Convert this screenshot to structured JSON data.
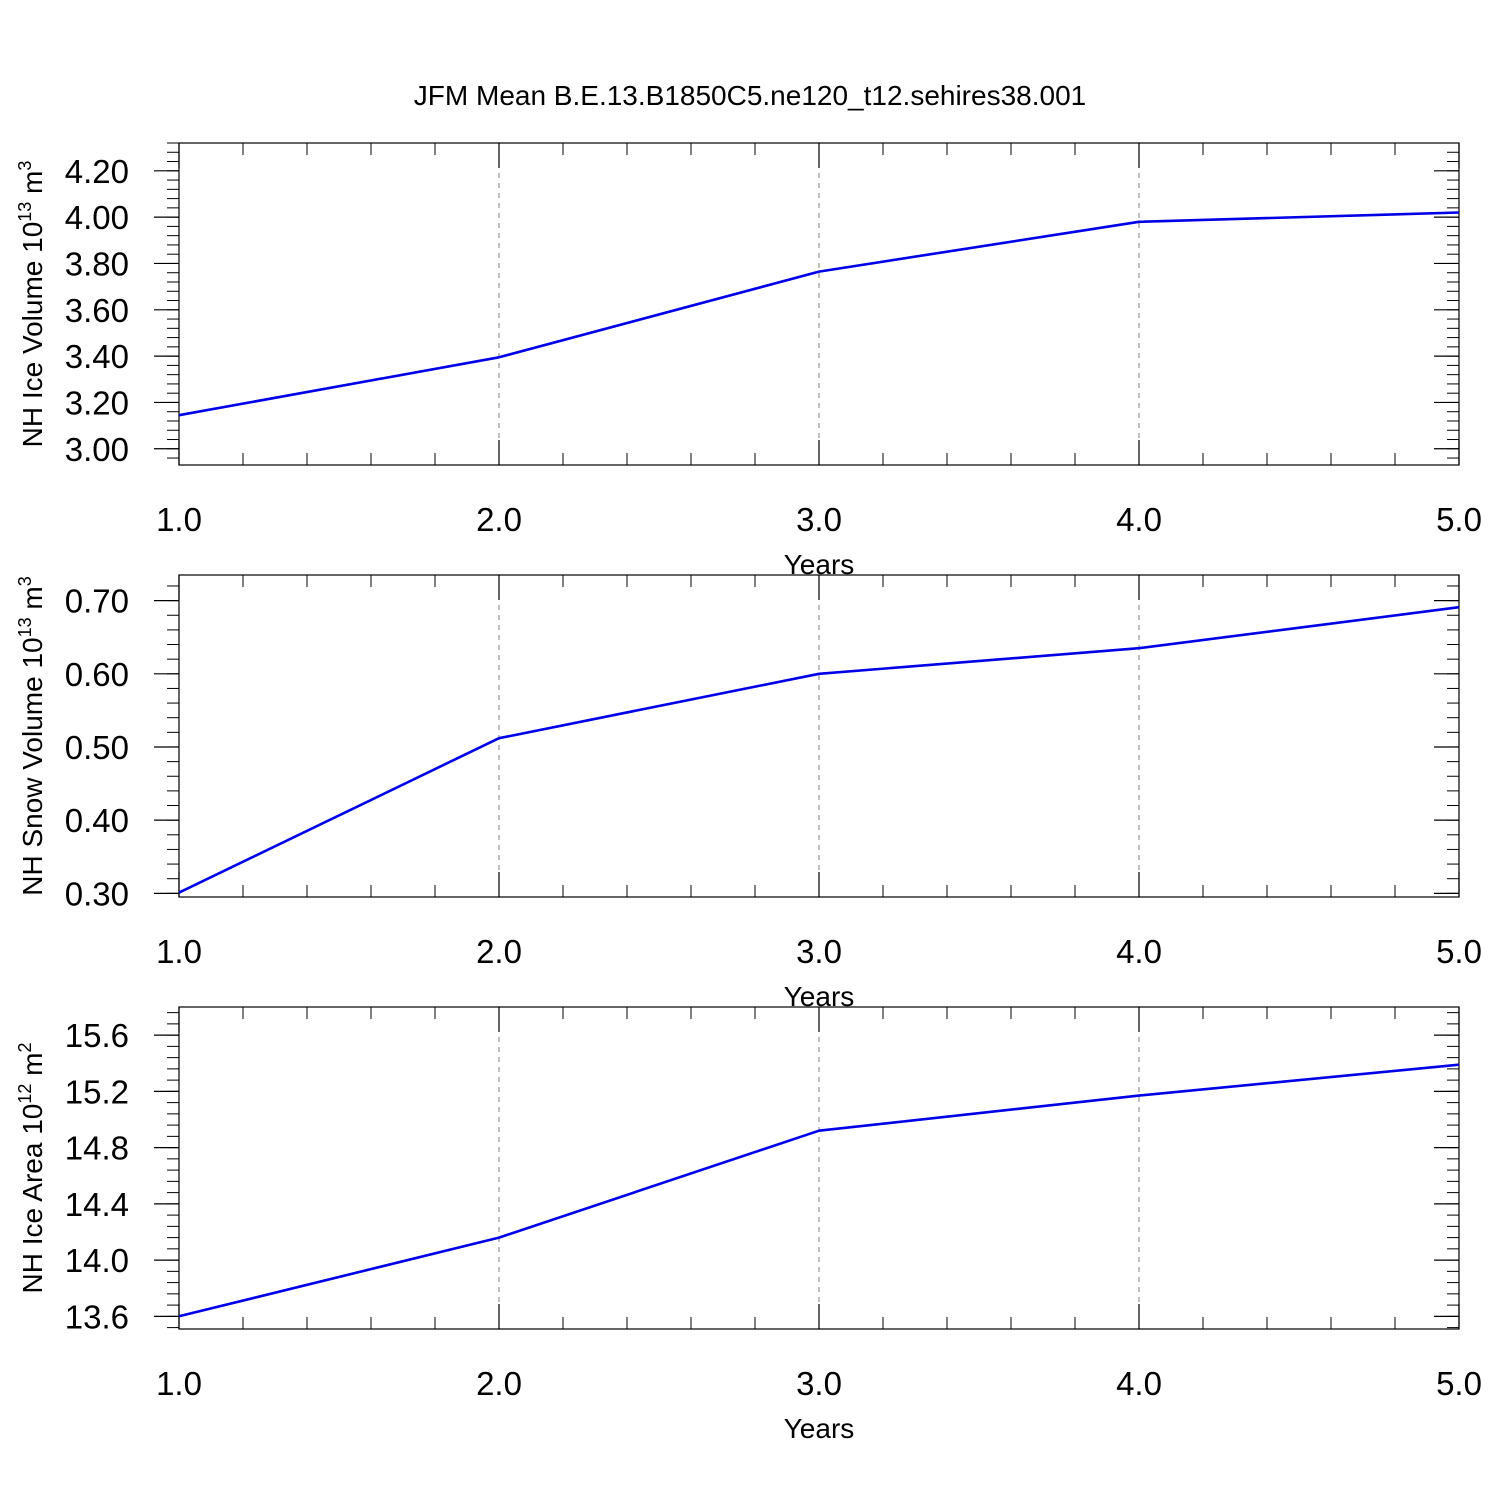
{
  "title": "JFM Mean B.E.13.B1850C5.ne120_t12.sehires38.001",
  "colors": {
    "line": "#0000e6",
    "axis": "#000000",
    "grid": "#7f7f7f"
  },
  "chart_data": [
    {
      "type": "line",
      "ylabel": "NH Ice Volume 10",
      "ylabel_exp": "13",
      "ylabel_unit": " m",
      "ylabel_unit_exp": "3",
      "xlabel": "Years",
      "xlim": [
        1.0,
        5.0
      ],
      "ylim": [
        2.93,
        4.32
      ],
      "xticks": [
        1.0,
        2.0,
        3.0,
        4.0,
        5.0
      ],
      "xtick_labels": [
        "1.0",
        "2.0",
        "3.0",
        "4.0",
        "5.0"
      ],
      "yticks": [
        3.0,
        3.2,
        3.4,
        3.6,
        3.8,
        4.0,
        4.2
      ],
      "ytick_labels": [
        "3.00",
        "3.20",
        "3.40",
        "3.60",
        "3.80",
        "4.00",
        "4.20"
      ],
      "yminor_step": 0.04,
      "x": [
        1.0,
        2.0,
        3.0,
        4.0,
        5.0
      ],
      "series": [
        {
          "name": "NH Ice Volume",
          "values": [
            3.145,
            3.395,
            3.765,
            3.98,
            4.02
          ]
        }
      ],
      "grid": "x-dashed"
    },
    {
      "type": "line",
      "ylabel": "NH Snow Volume 10",
      "ylabel_exp": "13",
      "ylabel_unit": " m",
      "ylabel_unit_exp": "3",
      "xlabel": "Years",
      "xlim": [
        1.0,
        5.0
      ],
      "ylim": [
        0.295,
        0.735
      ],
      "xticks": [
        1.0,
        2.0,
        3.0,
        4.0,
        5.0
      ],
      "xtick_labels": [
        "1.0",
        "2.0",
        "3.0",
        "4.0",
        "5.0"
      ],
      "yticks": [
        0.3,
        0.4,
        0.5,
        0.6,
        0.7
      ],
      "ytick_labels": [
        "0.30",
        "0.40",
        "0.50",
        "0.60",
        "0.70"
      ],
      "yminor_step": 0.02,
      "x": [
        1.0,
        2.0,
        3.0,
        4.0,
        5.0
      ],
      "series": [
        {
          "name": "NH Snow Volume",
          "values": [
            0.301,
            0.512,
            0.6,
            0.635,
            0.691
          ]
        }
      ],
      "grid": "x-dashed"
    },
    {
      "type": "line",
      "ylabel": "NH Ice Area 10",
      "ylabel_exp": "12",
      "ylabel_unit": " m",
      "ylabel_unit_exp": "2",
      "xlabel": "Years",
      "xlim": [
        1.0,
        5.0
      ],
      "ylim": [
        13.51,
        15.8
      ],
      "xticks": [
        1.0,
        2.0,
        3.0,
        4.0,
        5.0
      ],
      "xtick_labels": [
        "1.0",
        "2.0",
        "3.0",
        "4.0",
        "5.0"
      ],
      "yticks": [
        13.6,
        14.0,
        14.4,
        14.8,
        15.2,
        15.6
      ],
      "ytick_labels": [
        "13.6",
        "14.0",
        "14.4",
        "14.8",
        "15.2",
        "15.6"
      ],
      "yminor_step": 0.08,
      "x": [
        1.0,
        2.0,
        3.0,
        4.0,
        5.0
      ],
      "series": [
        {
          "name": "NH Ice Area",
          "values": [
            13.6,
            14.16,
            14.92,
            15.17,
            15.39
          ]
        }
      ],
      "grid": "x-dashed"
    }
  ]
}
